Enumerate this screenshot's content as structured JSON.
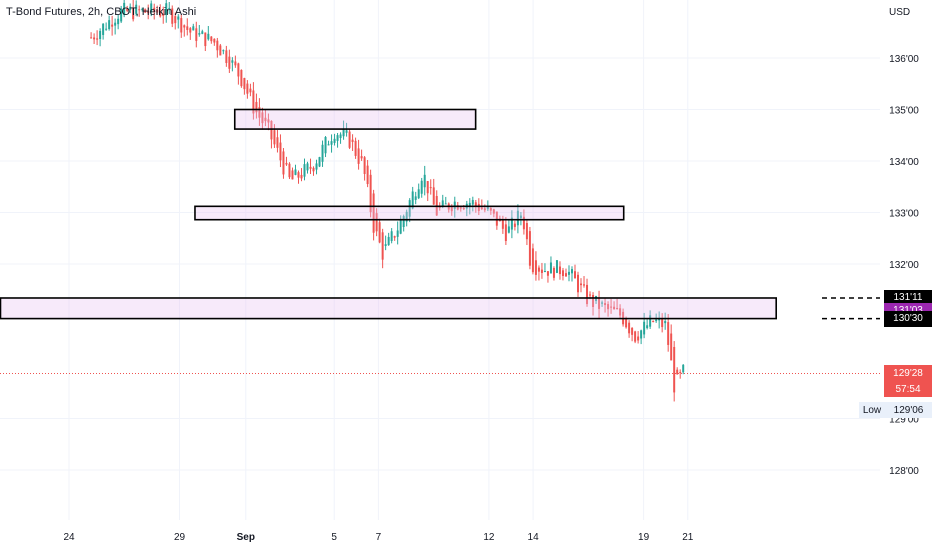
{
  "header": {
    "title": "T-Bond Futures, 2h, CBOT, Heikin Ashi",
    "currency": "USD"
  },
  "chart_data": {
    "type": "candlestick",
    "y_ticks": [
      {
        "label": "136'00",
        "value": 136.0
      },
      {
        "label": "135'00",
        "value": 135.0
      },
      {
        "label": "134'00",
        "value": 134.0
      },
      {
        "label": "133'00",
        "value": 133.0
      },
      {
        "label": "132'00",
        "value": 132.0
      },
      {
        "label": "129'00",
        "value": 129.0
      },
      {
        "label": "128'00",
        "value": 128.0
      }
    ],
    "x_ticks": [
      {
        "label": "24",
        "t": 0
      },
      {
        "label": "29",
        "t": 5
      },
      {
        "label": "Sep",
        "t": 8
      },
      {
        "label": "5",
        "t": 12
      },
      {
        "label": "7",
        "t": 14
      },
      {
        "label": "12",
        "t": 19
      },
      {
        "label": "14",
        "t": 21
      },
      {
        "label": "19",
        "t": 26
      },
      {
        "label": "21",
        "t": 28
      }
    ],
    "ylim": [
      127.5,
      137.0
    ],
    "price_tags": [
      {
        "label": "131'11",
        "value": 131.34,
        "color": "#000000"
      },
      {
        "label": "131'03",
        "value": 131.09,
        "color": "#9c27b0"
      },
      {
        "label": "130'30",
        "value": 130.94,
        "color": "#000000"
      }
    ],
    "last_price": {
      "label": "129'28",
      "value": 129.875,
      "countdown": "57:54",
      "color": "#ef5350"
    },
    "low": {
      "label": "Low",
      "value_label": "129'06",
      "value": 129.19
    },
    "zones": [
      {
        "t_start": 7.5,
        "t_end": 18.4,
        "y_low": 134.62,
        "y_high": 135.0
      },
      {
        "t_start": 5.7,
        "t_end": 25.1,
        "y_low": 132.86,
        "y_high": 133.12
      },
      {
        "t_start": -3.1,
        "t_end": 32.0,
        "y_low": 130.94,
        "y_high": 131.34
      }
    ],
    "up_color": "#26a69a",
    "down_color": "#ef5350"
  }
}
